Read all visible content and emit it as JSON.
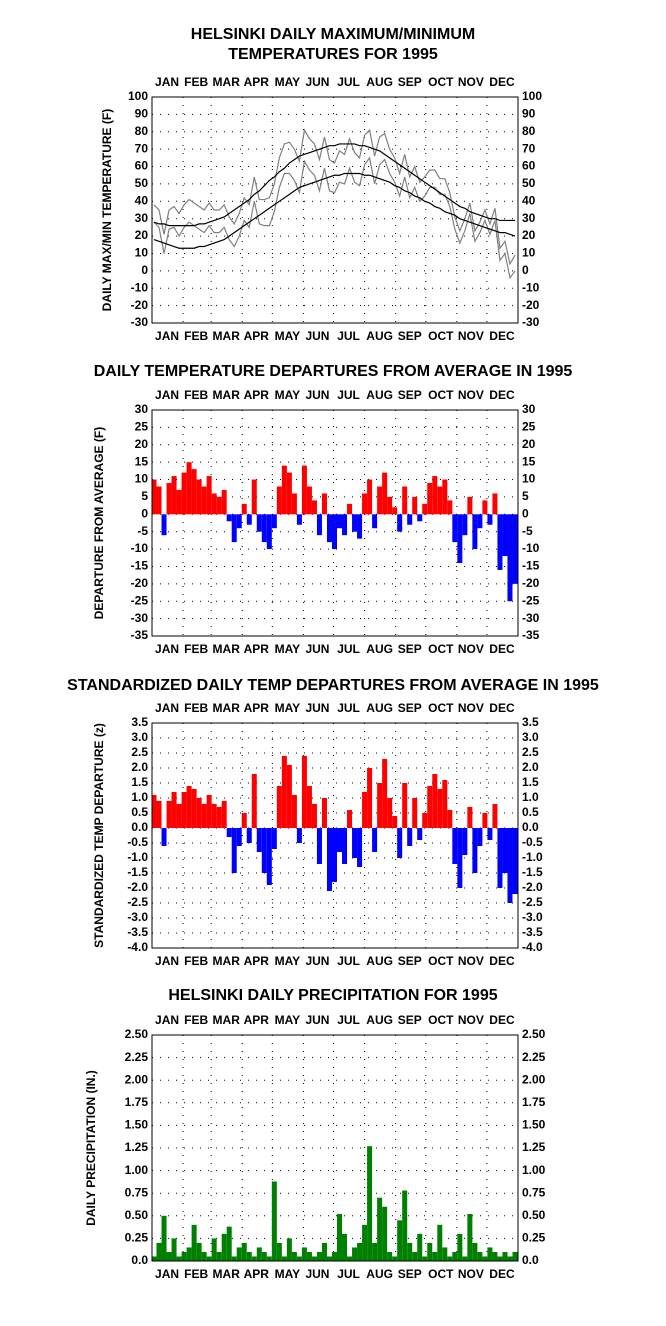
{
  "chart_data": [
    {
      "type": "line",
      "title": [
        "HELSINKI DAILY MAXIMUM/MINIMUM",
        "TEMPERATURES FOR 1995"
      ],
      "y_label": "DAILY MAX/MIN TEMPERATURE (F)",
      "x": [
        3,
        8,
        13,
        18,
        23,
        28,
        33,
        38,
        43,
        48,
        53,
        58,
        63,
        68,
        73,
        78,
        83,
        88,
        93,
        98,
        103,
        108,
        113,
        118,
        123,
        128,
        133,
        138,
        143,
        148,
        153,
        158,
        163,
        168,
        173,
        178,
        183,
        188,
        193,
        198,
        203,
        208,
        213,
        218,
        223,
        228,
        233,
        238,
        243,
        248,
        253,
        258,
        263,
        268,
        273,
        278,
        283,
        288,
        293,
        298,
        303,
        308,
        313,
        318,
        323,
        328,
        333,
        338,
        343,
        348,
        353,
        358,
        363
      ],
      "xlim": [
        1,
        366
      ],
      "xticks": [
        {
          "value": 16,
          "label": "JAN"
        },
        {
          "value": 45,
          "label": "FEB"
        },
        {
          "value": 75,
          "label": "MAR"
        },
        {
          "value": 105,
          "label": "APR"
        },
        {
          "value": 136,
          "label": "MAY"
        },
        {
          "value": 166,
          "label": "JUN"
        },
        {
          "value": 197,
          "label": "JUL"
        },
        {
          "value": 228,
          "label": "AUG"
        },
        {
          "value": 258,
          "label": "SEP"
        },
        {
          "value": 289,
          "label": "OCT"
        },
        {
          "value": 319,
          "label": "NOV"
        },
        {
          "value": 350,
          "label": "DEC"
        }
      ],
      "xgrid": [
        32,
        60,
        91,
        121,
        152,
        182,
        213,
        244,
        274,
        305,
        335
      ],
      "ylim": [
        -30,
        100
      ],
      "yticks": [
        -30,
        -20,
        -10,
        0,
        10,
        20,
        30,
        40,
        50,
        60,
        70,
        80,
        90,
        100
      ],
      "grid": true,
      "series": [
        {
          "color": "#808080",
          "values": [
            38,
            35,
            21,
            35,
            37,
            33,
            38,
            41,
            39,
            37,
            35,
            39,
            35,
            35,
            38,
            31,
            27,
            33,
            42,
            38,
            54,
            41,
            41,
            42,
            50,
            65,
            73,
            74,
            70,
            63,
            81,
            76,
            73,
            64,
            77,
            64,
            62,
            69,
            67,
            76,
            68,
            65,
            78,
            81,
            66,
            77,
            79,
            70,
            65,
            56,
            67,
            54,
            60,
            51,
            54,
            58,
            58,
            53,
            53,
            45,
            31,
            23,
            30,
            39,
            23,
            28,
            35,
            27,
            36,
            13,
            17,
            4,
            9
          ]
        },
        {
          "color": "#808080",
          "values": [
            28,
            25,
            10,
            24,
            25,
            20,
            25,
            28,
            26,
            24,
            22,
            26,
            22,
            22,
            25,
            18,
            14,
            20,
            29,
            25,
            40,
            27,
            26,
            26,
            34,
            48,
            56,
            56,
            52,
            45,
            63,
            58,
            55,
            46,
            59,
            46,
            45,
            51,
            50,
            59,
            51,
            49,
            61,
            65,
            50,
            61,
            64,
            56,
            51,
            43,
            54,
            42,
            48,
            40,
            43,
            48,
            48,
            44,
            44,
            37,
            24,
            16,
            23,
            33,
            17,
            22,
            29,
            21,
            29,
            6,
            10,
            -4,
            0
          ]
        },
        {
          "color": "#000000",
          "values": [
            28,
            27,
            27,
            26,
            26,
            26,
            26,
            26,
            26,
            27,
            27,
            28,
            29,
            30,
            31,
            33,
            35,
            37,
            39,
            41,
            44,
            46,
            49,
            52,
            54,
            57,
            59,
            62,
            64,
            66,
            67,
            68,
            69,
            70,
            71,
            72,
            72,
            73,
            73,
            73,
            73,
            72,
            72,
            71,
            70,
            69,
            67,
            65,
            63,
            61,
            59,
            57,
            55,
            53,
            51,
            49,
            47,
            45,
            43,
            41,
            39,
            37,
            36,
            34,
            33,
            32,
            31,
            30,
            30,
            29,
            29,
            29,
            29
          ]
        },
        {
          "color": "#000000",
          "values": [
            18,
            17,
            16,
            15,
            14,
            13,
            13,
            13,
            13,
            14,
            14,
            15,
            16,
            17,
            18,
            20,
            22,
            24,
            26,
            28,
            30,
            32,
            34,
            36,
            38,
            40,
            42,
            44,
            46,
            48,
            49,
            50,
            51,
            52,
            53,
            54,
            55,
            55,
            56,
            56,
            56,
            56,
            55,
            55,
            54,
            53,
            52,
            51,
            49,
            48,
            46,
            45,
            43,
            42,
            40,
            39,
            37,
            36,
            34,
            33,
            32,
            30,
            29,
            28,
            27,
            26,
            25,
            24,
            23,
            22,
            22,
            21,
            20
          ]
        }
      ]
    },
    {
      "type": "bar",
      "title": [
        "DAILY TEMPERATURE DEPARTURES FROM AVERAGE IN 1995"
      ],
      "y_label": "DEPARTURE FROM AVERAGE (F)",
      "x": [
        3,
        8,
        13,
        18,
        23,
        28,
        33,
        38,
        43,
        48,
        53,
        58,
        63,
        68,
        73,
        78,
        83,
        88,
        93,
        98,
        103,
        108,
        113,
        118,
        123,
        128,
        133,
        138,
        143,
        148,
        153,
        158,
        163,
        168,
        173,
        178,
        183,
        188,
        193,
        198,
        203,
        208,
        213,
        218,
        223,
        228,
        233,
        238,
        243,
        248,
        253,
        258,
        263,
        268,
        273,
        278,
        283,
        288,
        293,
        298,
        303,
        308,
        313,
        318,
        323,
        328,
        333,
        338,
        343,
        348,
        353,
        358,
        363
      ],
      "xlim": [
        1,
        366
      ],
      "xticks": [
        {
          "value": 16,
          "label": "JAN"
        },
        {
          "value": 45,
          "label": "FEB"
        },
        {
          "value": 75,
          "label": "MAR"
        },
        {
          "value": 105,
          "label": "APR"
        },
        {
          "value": 136,
          "label": "MAY"
        },
        {
          "value": 166,
          "label": "JUN"
        },
        {
          "value": 197,
          "label": "JUL"
        },
        {
          "value": 228,
          "label": "AUG"
        },
        {
          "value": 258,
          "label": "SEP"
        },
        {
          "value": 289,
          "label": "OCT"
        },
        {
          "value": 319,
          "label": "NOV"
        },
        {
          "value": 350,
          "label": "DEC"
        }
      ],
      "xgrid": [
        32,
        60,
        91,
        121,
        152,
        182,
        213,
        244,
        274,
        305,
        335
      ],
      "ylim": [
        -35,
        30
      ],
      "yticks": [
        -35,
        -30,
        -25,
        -20,
        -15,
        -10,
        -5,
        0,
        5,
        10,
        15,
        20,
        25,
        30
      ],
      "grid": true,
      "pos_color": "#ff0000",
      "neg_color": "#0000ff",
      "values": [
        10,
        8,
        -6,
        9,
        11,
        7,
        12,
        15,
        13,
        10,
        8,
        11,
        6,
        5,
        7,
        -2,
        -8,
        -4,
        3,
        -3,
        10,
        -5,
        -8,
        -10,
        -4,
        8,
        14,
        12,
        6,
        -3,
        14,
        8,
        4,
        -6,
        6,
        -8,
        -10,
        -4,
        -6,
        3,
        -5,
        -7,
        6,
        10,
        -4,
        8,
        12,
        5,
        2,
        -5,
        8,
        -3,
        5,
        -2,
        3,
        9,
        11,
        8,
        10,
        4,
        -8,
        -14,
        -6,
        5,
        -10,
        -4,
        4,
        -3,
        6,
        -16,
        -12,
        -25,
        -20
      ]
    },
    {
      "type": "bar",
      "title": [
        "STANDARDIZED DAILY TEMP DEPARTURES FROM AVERAGE IN 1995"
      ],
      "y_label": "STANDARDIZED TEMP DEPARTURE (z)",
      "x": [
        3,
        8,
        13,
        18,
        23,
        28,
        33,
        38,
        43,
        48,
        53,
        58,
        63,
        68,
        73,
        78,
        83,
        88,
        93,
        98,
        103,
        108,
        113,
        118,
        123,
        128,
        133,
        138,
        143,
        148,
        153,
        158,
        163,
        168,
        173,
        178,
        183,
        188,
        193,
        198,
        203,
        208,
        213,
        218,
        223,
        228,
        233,
        238,
        243,
        248,
        253,
        258,
        263,
        268,
        273,
        278,
        283,
        288,
        293,
        298,
        303,
        308,
        313,
        318,
        323,
        328,
        333,
        338,
        343,
        348,
        353,
        358,
        363
      ],
      "xlim": [
        1,
        366
      ],
      "xticks": [
        {
          "value": 16,
          "label": "JAN"
        },
        {
          "value": 45,
          "label": "FEB"
        },
        {
          "value": 75,
          "label": "MAR"
        },
        {
          "value": 105,
          "label": "APR"
        },
        {
          "value": 136,
          "label": "MAY"
        },
        {
          "value": 166,
          "label": "JUN"
        },
        {
          "value": 197,
          "label": "JUL"
        },
        {
          "value": 228,
          "label": "AUG"
        },
        {
          "value": 258,
          "label": "SEP"
        },
        {
          "value": 289,
          "label": "OCT"
        },
        {
          "value": 319,
          "label": "NOV"
        },
        {
          "value": 350,
          "label": "DEC"
        }
      ],
      "xgrid": [
        32,
        60,
        91,
        121,
        152,
        182,
        213,
        244,
        274,
        305,
        335
      ],
      "ylim": [
        -4,
        3.5
      ],
      "yticks": [
        {
          "value": -4,
          "label": "-4.0"
        },
        -3.5,
        {
          "value": -3,
          "label": "-3.0"
        },
        -2.5,
        {
          "value": -2,
          "label": "-2.0"
        },
        -1.5,
        {
          "value": -1,
          "label": "-1.0"
        },
        -0.5,
        {
          "value": 0,
          "label": "0.0"
        },
        0.5,
        {
          "value": 1,
          "label": "1.0"
        },
        1.5,
        {
          "value": 2,
          "label": "2.0"
        },
        2.5,
        {
          "value": 3,
          "label": "3.0"
        },
        3.5
      ],
      "grid": true,
      "pos_color": "#ff0000",
      "neg_color": "#0000ff",
      "values": [
        1.1,
        0.9,
        -0.6,
        0.9,
        1.2,
        0.8,
        1.2,
        1.4,
        1.3,
        1.0,
        0.8,
        1.1,
        0.8,
        0.7,
        0.9,
        -0.3,
        -1.5,
        -0.6,
        0.5,
        -0.5,
        1.8,
        -0.8,
        -1.5,
        -1.9,
        -0.7,
        1.4,
        2.4,
        2.1,
        1.1,
        -0.5,
        2.4,
        1.4,
        0.8,
        -1.2,
        1.0,
        -2.1,
        -1.8,
        -0.8,
        -1.2,
        0.6,
        -1.0,
        -1.3,
        1.2,
        2.0,
        -0.8,
        1.5,
        2.3,
        1.0,
        0.4,
        -1.0,
        1.5,
        -0.6,
        1.0,
        -0.4,
        0.5,
        1.4,
        1.8,
        1.3,
        1.6,
        0.6,
        -1.2,
        -2.0,
        -0.9,
        0.7,
        -1.5,
        -0.6,
        0.5,
        -0.4,
        0.8,
        -2.0,
        -1.5,
        -2.5,
        -2.2
      ]
    },
    {
      "type": "bar",
      "title": [
        "HELSINKI DAILY PRECIPITATION FOR 1995"
      ],
      "y_label": "DAILY PRECIPITATION (IN.)",
      "x": [
        3,
        8,
        13,
        18,
        23,
        28,
        33,
        38,
        43,
        48,
        53,
        58,
        63,
        68,
        73,
        78,
        83,
        88,
        93,
        98,
        103,
        108,
        113,
        118,
        123,
        128,
        133,
        138,
        143,
        148,
        153,
        158,
        163,
        168,
        173,
        178,
        183,
        188,
        193,
        198,
        203,
        208,
        213,
        218,
        223,
        228,
        233,
        238,
        243,
        248,
        253,
        258,
        263,
        268,
        273,
        278,
        283,
        288,
        293,
        298,
        303,
        308,
        313,
        318,
        323,
        328,
        333,
        338,
        343,
        348,
        353,
        358,
        363
      ],
      "xlim": [
        1,
        366
      ],
      "xticks": [
        {
          "value": 16,
          "label": "JAN"
        },
        {
          "value": 45,
          "label": "FEB"
        },
        {
          "value": 75,
          "label": "MAR"
        },
        {
          "value": 105,
          "label": "APR"
        },
        {
          "value": 136,
          "label": "MAY"
        },
        {
          "value": 166,
          "label": "JUN"
        },
        {
          "value": 197,
          "label": "JUL"
        },
        {
          "value": 228,
          "label": "AUG"
        },
        {
          "value": 258,
          "label": "SEP"
        },
        {
          "value": 289,
          "label": "OCT"
        },
        {
          "value": 319,
          "label": "NOV"
        },
        {
          "value": 350,
          "label": "DEC"
        }
      ],
      "xgrid": [
        32,
        60,
        91,
        121,
        152,
        182,
        213,
        244,
        274,
        305,
        335
      ],
      "ylim": [
        0,
        2.5
      ],
      "yticks": [
        {
          "value": 0,
          "label": "0.0"
        },
        0.25,
        {
          "value": 0.5,
          "label": "0.50"
        },
        0.75,
        {
          "value": 1,
          "label": "1.00"
        },
        1.25,
        {
          "value": 1.5,
          "label": "1.50"
        },
        1.75,
        {
          "value": 2,
          "label": "2.00"
        },
        2.25,
        {
          "value": 2.5,
          "label": "2.50"
        }
      ],
      "grid": true,
      "color": "#008000",
      "values": [
        0.05,
        0.2,
        0.5,
        0.1,
        0.25,
        0.05,
        0.1,
        0.15,
        0.4,
        0.2,
        0.1,
        0.05,
        0.25,
        0.1,
        0.3,
        0.38,
        0.05,
        0.15,
        0.2,
        0.1,
        0.05,
        0.15,
        0.1,
        0.05,
        0.88,
        0.2,
        0.05,
        0.25,
        0.1,
        0.05,
        0.15,
        0.1,
        0.05,
        0.1,
        0.2,
        0.05,
        0.1,
        0.52,
        0.3,
        0.05,
        0.15,
        0.2,
        0.4,
        1.27,
        0.2,
        0.7,
        0.6,
        0.1,
        0.05,
        0.45,
        0.78,
        0.2,
        0.1,
        0.3,
        0.05,
        0.2,
        0.1,
        0.4,
        0.15,
        0.05,
        0.1,
        0.3,
        0.05,
        0.52,
        0.2,
        0.1,
        0.05,
        0.15,
        0.1,
        0.05,
        0.1,
        0.05,
        0.1
      ]
    }
  ]
}
